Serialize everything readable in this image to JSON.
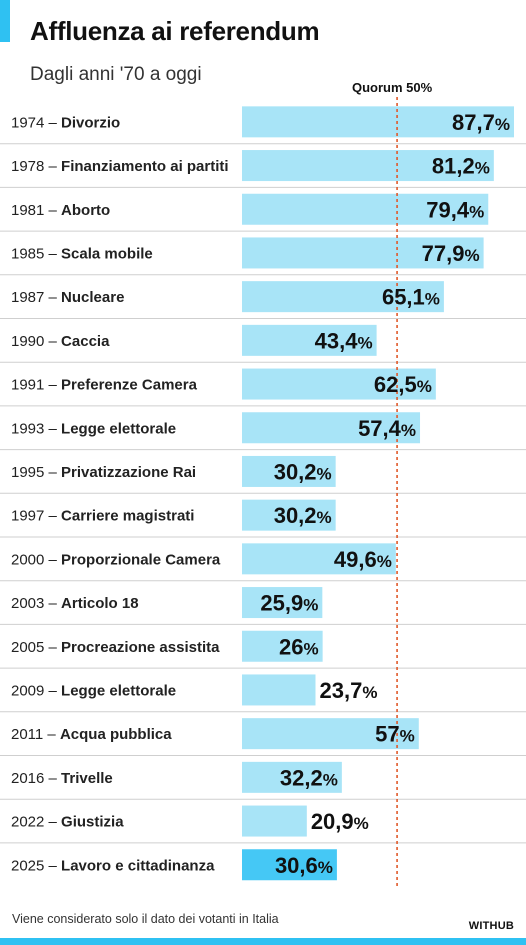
{
  "title": "Affluenza ai referendum",
  "subtitle": "Dagli anni '70 a oggi",
  "quorum_label": "Quorum 50%",
  "footnote": "Viene considerato solo il dato dei votanti in Italia",
  "brand": "WITHUB",
  "colors": {
    "accent": "#2fc1f2",
    "bar": "#a8e4f7",
    "bar_highlight": "#45c8f5",
    "quorum_line": "#e0592a",
    "separator": "#cfcfcf"
  },
  "chart_data": {
    "type": "bar",
    "orientation": "horizontal",
    "categories": [
      {
        "year": "1974",
        "topic": "Divorzio"
      },
      {
        "year": "1978",
        "topic": "Finanziamento ai partiti"
      },
      {
        "year": "1981",
        "topic": "Aborto"
      },
      {
        "year": "1985",
        "topic": "Scala mobile"
      },
      {
        "year": "1987",
        "topic": "Nucleare"
      },
      {
        "year": "1990",
        "topic": "Caccia"
      },
      {
        "year": "1991",
        "topic": "Preferenze Camera"
      },
      {
        "year": "1993",
        "topic": "Legge elettorale"
      },
      {
        "year": "1995",
        "topic": "Privatizzazione Rai"
      },
      {
        "year": "1997",
        "topic": "Carriere magistrati"
      },
      {
        "year": "2000",
        "topic": "Proporzionale Camera"
      },
      {
        "year": "2003",
        "topic": "Articolo 18"
      },
      {
        "year": "2005",
        "topic": "Procreazione assistita"
      },
      {
        "year": "2009",
        "topic": "Legge elettorale"
      },
      {
        "year": "2011",
        "topic": "Acqua pubblica"
      },
      {
        "year": "2016",
        "topic": "Trivelle"
      },
      {
        "year": "2022",
        "topic": "Giustizia"
      },
      {
        "year": "2025",
        "topic": "Lavoro e cittadinanza"
      }
    ],
    "values": [
      87.7,
      81.2,
      79.4,
      77.9,
      65.1,
      43.4,
      62.5,
      57.4,
      30.2,
      30.2,
      49.6,
      25.9,
      26,
      23.7,
      57,
      32.2,
      20.9,
      30.6
    ],
    "value_labels": [
      "87,7",
      "81,2",
      "79,4",
      "77,9",
      "65,1",
      "43,4",
      "62,5",
      "57,4",
      "30,2",
      "30,2",
      "49,6",
      "25,9",
      "26",
      "23,7",
      "57",
      "32,2",
      "20,9",
      "30,6"
    ],
    "unit": "%",
    "highlight_index": 17,
    "quorum": 50,
    "xlim": [
      0,
      87.7
    ]
  }
}
